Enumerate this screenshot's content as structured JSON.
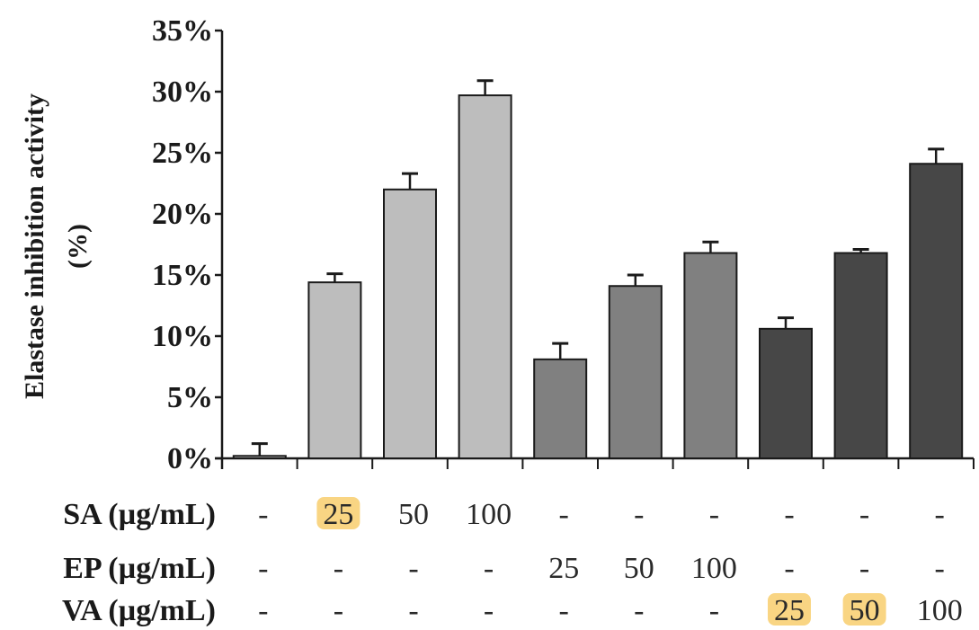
{
  "chart_data": {
    "type": "bar",
    "ylabel_lines": [
      "Elastase inhibition activity",
      "(%)"
    ],
    "ylim": [
      0,
      35
    ],
    "y_ticks": [
      0,
      5,
      10,
      15,
      20,
      25,
      30,
      35
    ],
    "y_tick_labels": [
      "0%",
      "5%",
      "10%",
      "15%",
      "20%",
      "25%",
      "30%",
      "35%"
    ],
    "values": [
      0.2,
      14.4,
      22.0,
      29.7,
      8.1,
      14.1,
      16.8,
      10.6,
      16.8,
      24.1
    ],
    "errors": [
      1.0,
      0.7,
      1.3,
      1.2,
      1.3,
      0.9,
      0.9,
      0.9,
      0.3,
      1.2
    ],
    "bar_colors": [
      "#bdbdbd",
      "#bdbdbd",
      "#bdbdbd",
      "#bdbdbd",
      "#808080",
      "#808080",
      "#808080",
      "#474747",
      "#474747",
      "#474747"
    ],
    "grid": false,
    "legend": "none",
    "treatment_table": [
      {
        "label": "SA (µg/mL)",
        "cells": [
          "-",
          "25",
          "50",
          "100",
          "-",
          "-",
          "-",
          "-",
          "-",
          "-"
        ]
      },
      {
        "label": "EP (µg/mL)",
        "cells": [
          "-",
          "-",
          "-",
          "-",
          "25",
          "50",
          "100",
          "-",
          "-",
          "-"
        ]
      },
      {
        "label": "VA (µg/mL)",
        "cells": [
          "-",
          "-",
          "-",
          "-",
          "-",
          "-",
          "-",
          "25",
          "50",
          "100"
        ]
      }
    ],
    "highlight_color": "#f7c75a",
    "highlighted_cells": [
      [
        0,
        1
      ],
      [
        2,
        7
      ],
      [
        2,
        8
      ]
    ]
  }
}
